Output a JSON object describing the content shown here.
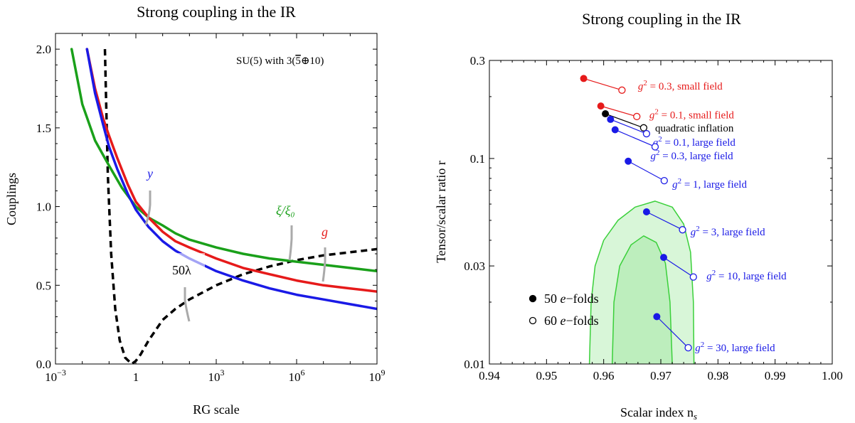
{
  "chart_data": [
    {
      "type": "line",
      "title": "Strong coupling in the IR",
      "xlabel": "RG scale",
      "ylabel": "Couplings",
      "xscale": "log",
      "xlim": [
        0.001,
        1000000000
      ],
      "ylim": [
        0,
        2.1
      ],
      "x_tick_labels": [
        "10",
        "1",
        "10",
        "10",
        "10"
      ],
      "x_tick_exponents": [
        "−3",
        "",
        "3",
        "6",
        "9"
      ],
      "y_ticks": [
        0.0,
        0.5,
        1.0,
        1.5,
        2.0
      ],
      "y_tick_labels": [
        "0.0",
        "0.5",
        "1.0",
        "1.5",
        "2.0"
      ],
      "inset_label": "SU(5) with 3(",
      "inset_label_tail": "5",
      "inset_label_end": "⊕10)",
      "grid": false,
      "series": [
        {
          "label": "y",
          "color": "#1a1ae6",
          "style": "solid",
          "x": [
            0.015,
            0.03,
            0.06,
            0.1,
            0.2,
            0.5,
            1,
            3,
            10,
            30,
            100,
            1000,
            10000,
            100000,
            1000000,
            10000000,
            100000000,
            1000000000
          ],
          "y": [
            2.0,
            1.72,
            1.52,
            1.38,
            1.24,
            1.08,
            0.98,
            0.87,
            0.78,
            0.72,
            0.67,
            0.59,
            0.53,
            0.48,
            0.44,
            0.41,
            0.38,
            0.35
          ]
        },
        {
          "label": "g",
          "color": "#e61a1a",
          "style": "solid",
          "x": [
            0.015,
            0.03,
            0.06,
            0.1,
            0.2,
            0.5,
            1,
            3,
            10,
            30,
            100,
            1000,
            10000,
            100000,
            1000000,
            10000000,
            100000000,
            1000000000
          ],
          "y": [
            2.0,
            1.75,
            1.56,
            1.45,
            1.31,
            1.14,
            1.03,
            0.93,
            0.84,
            0.78,
            0.74,
            0.67,
            0.61,
            0.57,
            0.53,
            0.5,
            0.48,
            0.46
          ]
        },
        {
          "label": "ξ/ξ₀",
          "color": "#1aa01a",
          "style": "solid",
          "x": [
            0.004,
            0.01,
            0.03,
            0.1,
            0.3,
            1,
            3,
            10,
            30,
            100,
            1000,
            10000,
            100000,
            1000000,
            10000000,
            100000000,
            1000000000
          ],
          "y": [
            2.0,
            1.65,
            1.42,
            1.26,
            1.12,
            1.0,
            0.93,
            0.88,
            0.83,
            0.79,
            0.74,
            0.7,
            0.67,
            0.65,
            0.63,
            0.61,
            0.59
          ]
        },
        {
          "label": "50λ",
          "color": "#000000",
          "style": "dashed",
          "x": [
            0.07,
            0.09,
            0.12,
            0.17,
            0.25,
            0.4,
            0.7,
            1.0,
            1.5,
            3,
            10,
            30,
            100,
            1000,
            10000,
            100000,
            1000000,
            10000000,
            100000000,
            1000000000
          ],
          "y": [
            2.0,
            1.2,
            0.7,
            0.35,
            0.15,
            0.04,
            0.0,
            0.02,
            0.06,
            0.15,
            0.28,
            0.35,
            0.41,
            0.5,
            0.57,
            0.62,
            0.66,
            0.69,
            0.71,
            0.73
          ]
        }
      ]
    },
    {
      "type": "scatter",
      "title": "Strong coupling in the IR",
      "xlabel": "Scalar index n",
      "xlabel_sub": "s",
      "ylabel": "Tensor/scalar ratio r",
      "yscale": "log",
      "xlim": [
        0.94,
        1.0
      ],
      "ylim": [
        0.01,
        0.3
      ],
      "x_ticks": [
        0.94,
        0.95,
        0.96,
        0.97,
        0.98,
        0.99,
        1.0
      ],
      "x_tick_labels": [
        "0.94",
        "0.95",
        "0.96",
        "0.97",
        "0.98",
        "0.99",
        "1.00"
      ],
      "y_ticks": [
        0.01,
        0.03,
        0.1,
        0.3
      ],
      "y_tick_labels": [
        "0.01",
        "0.03",
        "0.1",
        "0.3"
      ],
      "grid": false,
      "legend": {
        "placement": "bottom-left",
        "entries": [
          {
            "marker": "filled",
            "prefix": "50 ",
            "italic": "e",
            "suffix": "−folds"
          },
          {
            "marker": "open",
            "prefix": "60 ",
            "italic": "e",
            "suffix": "−folds"
          }
        ]
      },
      "contours": [
        {
          "name": "2-sigma",
          "fill": "#d8f6d8",
          "stroke": "#3ad03a",
          "points": [
            [
              0.9575,
              0.01
            ],
            [
              0.9578,
              0.02
            ],
            [
              0.9585,
              0.03
            ],
            [
              0.96,
              0.04
            ],
            [
              0.9625,
              0.05
            ],
            [
              0.9655,
              0.058
            ],
            [
              0.969,
              0.062
            ],
            [
              0.972,
              0.058
            ],
            [
              0.974,
              0.048
            ],
            [
              0.9752,
              0.035
            ],
            [
              0.9757,
              0.02
            ],
            [
              0.9758,
              0.01
            ]
          ]
        },
        {
          "name": "1-sigma",
          "fill": "#bdeebd",
          "stroke": "#3ad03a",
          "points": [
            [
              0.9615,
              0.01
            ],
            [
              0.9618,
              0.02
            ],
            [
              0.9628,
              0.03
            ],
            [
              0.9648,
              0.038
            ],
            [
              0.967,
              0.042
            ],
            [
              0.9692,
              0.039
            ],
            [
              0.9708,
              0.031
            ],
            [
              0.9716,
              0.02
            ],
            [
              0.972,
              0.01
            ]
          ]
        }
      ],
      "points": [
        {
          "label_pre": "g",
          "label_exp": "2",
          "label_post": " = 0.3, small field",
          "color": "#e61a1a",
          "n50": [
            0.9565,
            0.245
          ],
          "r50": 0.245,
          "n60": [
            0.9632,
            0.215
          ],
          "label_pos": [
            0.966,
            0.225
          ]
        },
        {
          "label_pre": "g",
          "label_exp": "2",
          "label_post": " = 0.1, small field",
          "color": "#e61a1a",
          "n50": [
            0.9595,
            0.18
          ],
          "n60": [
            0.9658,
            0.16
          ],
          "label_pos": [
            0.968,
            0.163
          ]
        },
        {
          "label_pre": "",
          "label_exp": "",
          "label_post": "quadratic inflation",
          "color": "#000000",
          "n50": [
            0.9603,
            0.165
          ],
          "n60": [
            0.967,
            0.141
          ],
          "label_pos": [
            0.969,
            0.141
          ]
        },
        {
          "label_pre": "g",
          "label_exp": "2",
          "label_post": " = 0.1, large field",
          "color": "#1a1ae6",
          "n50": [
            0.9612,
            0.155
          ],
          "n60": [
            0.9675,
            0.132
          ],
          "label_pos": [
            0.9686,
            0.12
          ]
        },
        {
          "label_pre": "g",
          "label_exp": "2",
          "label_post": " = 0.3, large field",
          "color": "#1a1ae6",
          "n50": [
            0.962,
            0.138
          ],
          "n60": [
            0.969,
            0.114
          ],
          "label_pos": [
            0.9682,
            0.103
          ]
        },
        {
          "label_pre": "g",
          "label_exp": "2",
          "label_post": " = 1, large field",
          "color": "#1a1ae6",
          "n50": [
            0.9643,
            0.097
          ],
          "n60": [
            0.9706,
            0.078
          ],
          "label_pos": [
            0.972,
            0.075
          ]
        },
        {
          "label_pre": "g",
          "label_exp": "2",
          "label_post": " = 3, large field",
          "color": "#1a1ae6",
          "n50": [
            0.9675,
            0.055
          ],
          "n60": [
            0.9738,
            0.045
          ],
          "label_pos": [
            0.9752,
            0.044
          ]
        },
        {
          "label_pre": "g",
          "label_exp": "2",
          "label_post": " = 10, large field",
          "color": "#1a1ae6",
          "n50": [
            0.9705,
            0.033
          ],
          "n60": [
            0.9757,
            0.0265
          ],
          "label_pos": [
            0.978,
            0.0268
          ]
        },
        {
          "label_pre": "g",
          "label_exp": "2",
          "label_post": " = 30, large field",
          "color": "#1a1ae6",
          "n50": [
            0.9693,
            0.017
          ],
          "n60": [
            0.9748,
            0.012
          ],
          "label_pos": [
            0.976,
            0.012
          ]
        }
      ]
    }
  ]
}
